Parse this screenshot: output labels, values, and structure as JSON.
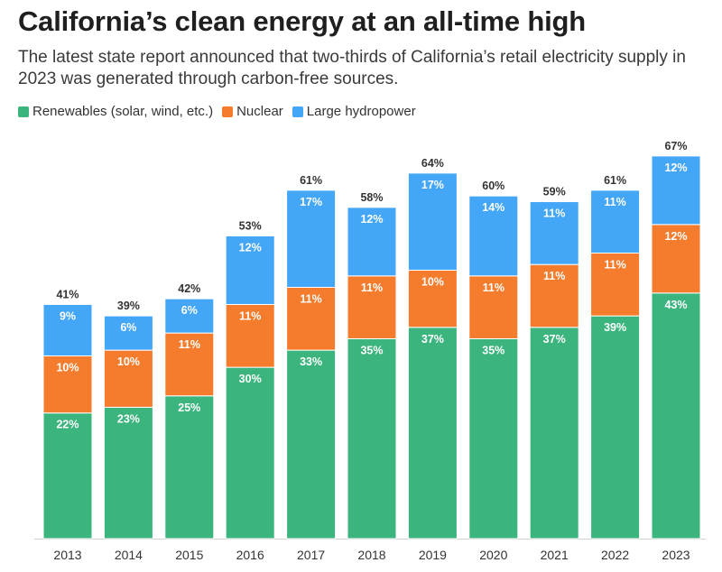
{
  "title": "California’s clean energy at an all-time high",
  "subtitle": "The latest state report announced that two-thirds of California’s retail electricity supply in 2023 was generated through carbon-free sources.",
  "chart_data": {
    "type": "bar",
    "stacked": true,
    "categories": [
      "2013",
      "2014",
      "2015",
      "2016",
      "2017",
      "2018",
      "2019",
      "2020",
      "2021",
      "2022",
      "2023"
    ],
    "series": [
      {
        "name": "Renewables (solar, wind, etc.)",
        "color": "#3bb47d",
        "values": [
          22,
          23,
          25,
          30,
          33,
          35,
          37,
          35,
          37,
          39,
          43
        ]
      },
      {
        "name": "Nuclear",
        "color": "#f47c2c",
        "values": [
          10,
          10,
          11,
          11,
          11,
          11,
          10,
          11,
          11,
          11,
          12
        ]
      },
      {
        "name": "Large hydropower",
        "color": "#44a6f7",
        "values": [
          9,
          6,
          6,
          12,
          17,
          12,
          17,
          14,
          11,
          11,
          12
        ]
      }
    ],
    "totals": [
      41,
      39,
      42,
      53,
      61,
      58,
      64,
      60,
      59,
      61,
      67
    ],
    "value_suffix": "%",
    "legend_position": "top-left",
    "grid": false
  }
}
